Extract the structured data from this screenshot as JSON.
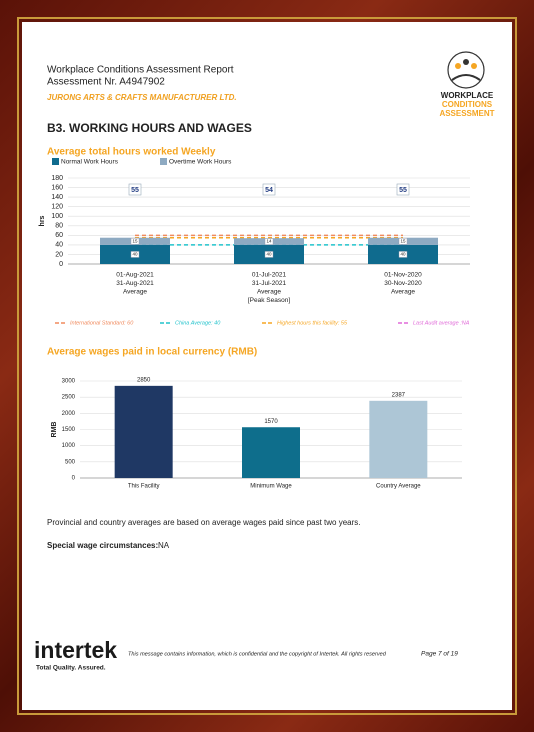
{
  "header": {
    "title": "Workplace Conditions Assessment Report",
    "assessment": "Assessment Nr. A4947902",
    "company": "JURONG ARTS & CRAFTS MANUFACTURER LTD.",
    "logo": [
      "WORKPLACE",
      "CONDITIONS",
      "ASSESSMENT"
    ]
  },
  "section_title": "B3. WORKING HOURS AND WAGES",
  "chart_data": [
    {
      "type": "stacked_bar",
      "title": "Average total hours worked Weekly",
      "ylabel": "hrs",
      "categories": [
        [
          "01-Aug-2021",
          "31-Aug-2021",
          "Average"
        ],
        [
          "01-Jul-2021",
          "31-Jul-2021",
          "Average",
          "[Peak Season]"
        ],
        [
          "01-Nov-2020",
          "30-Nov-2020",
          "Average"
        ]
      ],
      "series": [
        {
          "name": "Normal Work Hours",
          "color": "#0f6b8e",
          "values": [
            40,
            40,
            40
          ]
        },
        {
          "name": "Overtime Work Hours",
          "color": "#8eaac2",
          "values": [
            15,
            14,
            15
          ]
        }
      ],
      "totals": [
        55,
        54,
        55
      ],
      "reference_lines": [
        {
          "label": "International Standard: 60",
          "value": 60,
          "color": "#f08a5d"
        },
        {
          "label": "China Average: 40",
          "value": 40,
          "color": "#22c3cc"
        },
        {
          "label": "Highest hours this facility: 55",
          "value": 55,
          "color": "#f5a623"
        },
        {
          "label": "Last Audit average :NA",
          "value": null,
          "color": "#e06ad8"
        }
      ],
      "ylim": [
        0,
        180
      ],
      "yticks": [
        0,
        20,
        40,
        60,
        80,
        100,
        120,
        140,
        160,
        180
      ],
      "grid": true
    },
    {
      "type": "bar",
      "title": "Average wages paid in local currency (RMB)",
      "ylabel": "RMB",
      "categories": [
        "This Facility",
        "Minimum Wage",
        "Country Average"
      ],
      "values": [
        2850,
        1570,
        2387
      ],
      "colors": [
        "#1f3864",
        "#0e6e8c",
        "#adc6d6"
      ],
      "ylim": [
        0,
        3000
      ],
      "yticks": [
        0,
        500,
        1000,
        1500,
        2000,
        2500,
        3000
      ],
      "grid": true
    }
  ],
  "note": "Provincial and country averages are based on average wages paid since past two years.",
  "special": {
    "label": "Special wage circumstances:",
    "value": "NA"
  },
  "footer": {
    "brand": "intertek",
    "tagline": "Total Quality. Assured.",
    "notice": "This message contains information, which is confidential and the copyright of Intertek. All rights reserved",
    "page": "Page 7 of 19"
  }
}
